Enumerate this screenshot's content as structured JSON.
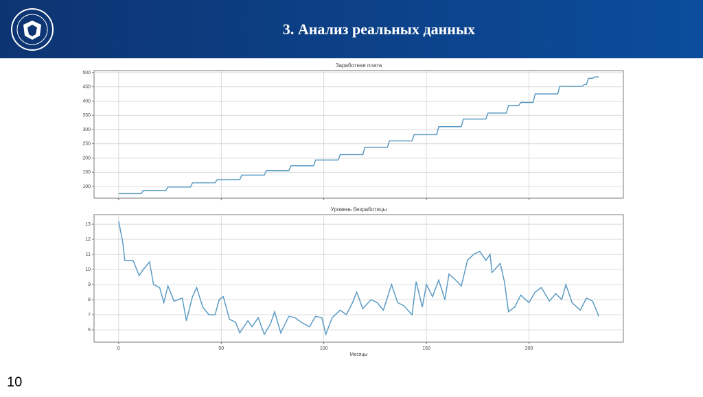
{
  "header": {
    "title": "3. Анализ реальных данных"
  },
  "page_number": "10",
  "chart_data": [
    {
      "type": "line",
      "title": "Заработная плата",
      "color": "#5b9bc4",
      "grid": true,
      "show_xtick_labels": false,
      "x": [
        0,
        11,
        12,
        23,
        24,
        35,
        36,
        47,
        48,
        59,
        60,
        71,
        72,
        83,
        84,
        95,
        96,
        107,
        108,
        119,
        120,
        131,
        132,
        143,
        144,
        155,
        156,
        167,
        168,
        179,
        180,
        189,
        190,
        195,
        196,
        202,
        203,
        214,
        215,
        226,
        227,
        228,
        229,
        231,
        232,
        234
      ],
      "values": [
        75,
        75,
        86,
        86,
        98,
        98,
        113,
        113,
        124,
        124,
        140,
        140,
        156,
        156,
        173,
        173,
        193,
        193,
        212,
        212,
        238,
        238,
        260,
        260,
        282,
        282,
        310,
        310,
        337,
        337,
        358,
        358,
        385,
        385,
        395,
        395,
        425,
        425,
        452,
        452,
        458,
        458,
        480,
        480,
        485,
        485
      ],
      "xlim": [
        -12,
        246
      ],
      "xticks": [
        0,
        50,
        100,
        150,
        200
      ],
      "ylim": [
        59,
        507
      ],
      "yticks": [
        100,
        150,
        200,
        250,
        300,
        350,
        400,
        450,
        500
      ]
    },
    {
      "type": "line",
      "title": "Уровень безработицы",
      "color": "#5b9bc4",
      "grid": true,
      "show_xtick_labels": true,
      "xlabel": "Месяцы",
      "x": [
        0,
        2,
        3,
        7,
        10,
        12,
        15,
        17,
        20,
        22,
        24,
        27,
        31,
        33,
        36,
        38,
        41,
        44,
        47,
        49,
        51,
        54,
        57,
        59,
        63,
        65,
        68,
        71,
        74,
        76,
        79,
        83,
        86,
        89,
        93,
        96,
        99,
        101,
        104,
        108,
        111,
        114,
        116,
        119,
        123,
        126,
        129,
        133,
        136,
        139,
        143,
        145,
        148,
        150,
        153,
        156,
        159,
        161,
        165,
        167,
        170,
        173,
        176,
        179,
        181,
        182,
        186,
        188,
        190,
        193,
        196,
        200,
        203,
        206,
        210,
        213,
        216,
        218,
        221,
        225,
        228,
        231,
        234
      ],
      "values": [
        13.2,
        11.8,
        10.6,
        10.6,
        9.6,
        10.0,
        10.5,
        9.0,
        8.8,
        7.8,
        8.9,
        7.9,
        8.1,
        6.6,
        8.2,
        8.8,
        7.5,
        7.0,
        7.0,
        8.0,
        8.2,
        6.7,
        6.5,
        5.8,
        6.6,
        6.2,
        6.8,
        5.7,
        6.4,
        7.2,
        5.8,
        6.9,
        6.8,
        6.5,
        6.2,
        6.9,
        6.8,
        5.7,
        6.8,
        7.3,
        7.0,
        7.8,
        8.5,
        7.4,
        8.0,
        7.8,
        7.3,
        9.0,
        7.8,
        7.6,
        7.0,
        9.2,
        7.5,
        9.0,
        8.2,
        9.3,
        8.0,
        9.7,
        9.2,
        8.9,
        10.6,
        11.0,
        11.2,
        10.6,
        11.0,
        9.8,
        10.4,
        9.2,
        7.2,
        7.5,
        8.3,
        7.8,
        8.5,
        8.8,
        7.9,
        8.4,
        8.0,
        9.0,
        7.8,
        7.3,
        8.1,
        7.9,
        6.9
      ],
      "xlim": [
        -12,
        246
      ],
      "xticks": [
        0,
        50,
        100,
        150,
        200
      ],
      "ylim": [
        5.18,
        13.64
      ],
      "yticks": [
        6,
        7,
        8,
        9,
        10,
        11,
        12,
        13
      ]
    }
  ]
}
